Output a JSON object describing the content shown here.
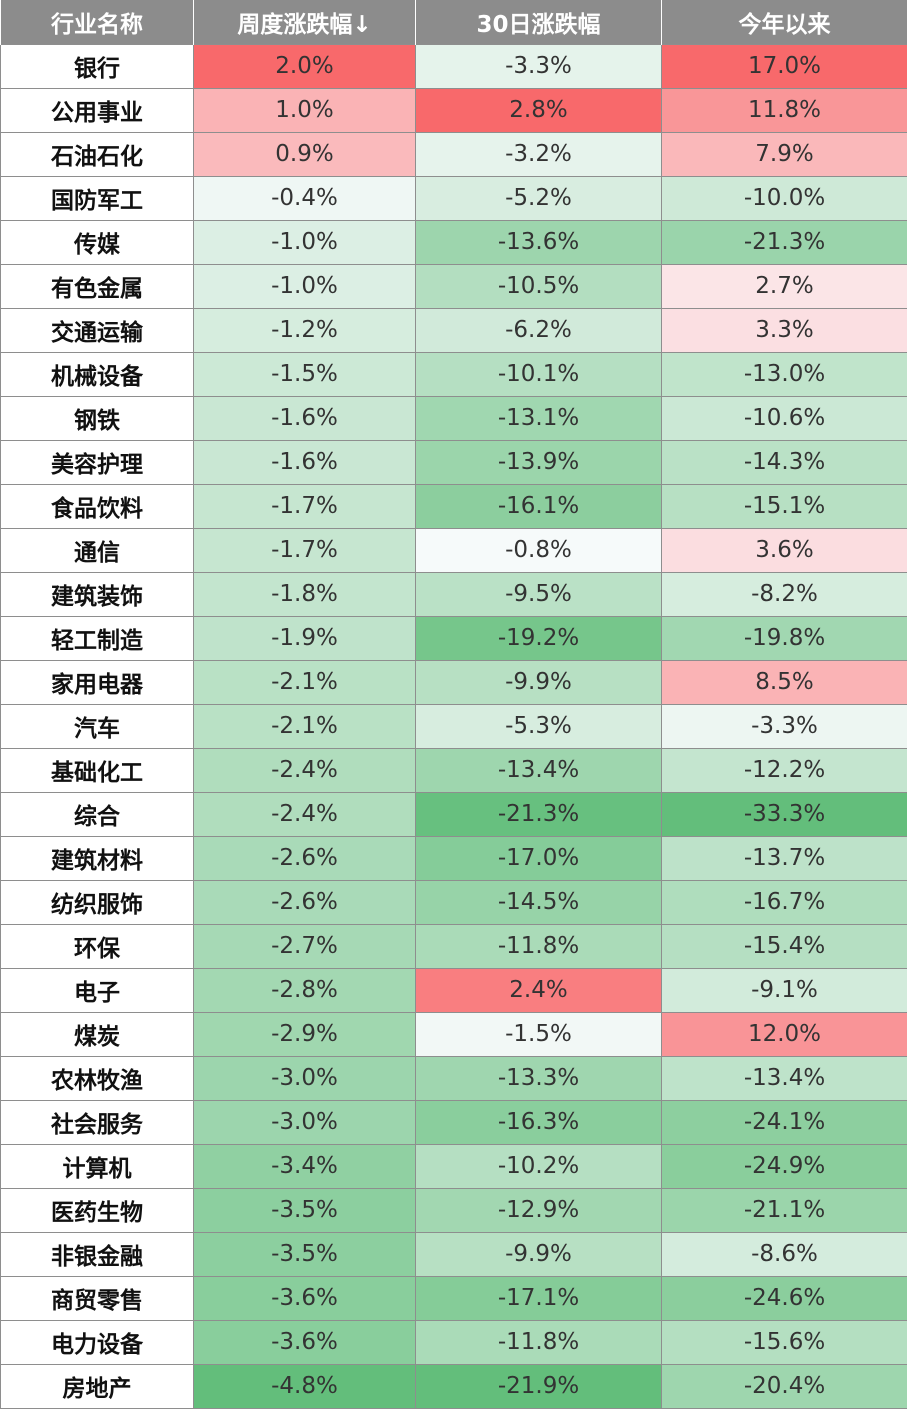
{
  "chart_data": {
    "type": "table",
    "columns": [
      "行业名称",
      "周度涨跌幅↓",
      "30日涨跌幅",
      "今年以来"
    ],
    "rows": [
      [
        "银行",
        "2.0%",
        "-3.3%",
        "17.0%"
      ],
      [
        "公用事业",
        "1.0%",
        "2.8%",
        "11.8%"
      ],
      [
        "石油石化",
        "0.9%",
        "-3.2%",
        "7.9%"
      ],
      [
        "国防军工",
        "-0.4%",
        "-5.2%",
        "-10.0%"
      ],
      [
        "传媒",
        "-1.0%",
        "-13.6%",
        "-21.3%"
      ],
      [
        "有色金属",
        "-1.0%",
        "-10.5%",
        "2.7%"
      ],
      [
        "交通运输",
        "-1.2%",
        "-6.2%",
        "3.3%"
      ],
      [
        "机械设备",
        "-1.5%",
        "-10.1%",
        "-13.0%"
      ],
      [
        "钢铁",
        "-1.6%",
        "-13.1%",
        "-10.6%"
      ],
      [
        "美容护理",
        "-1.6%",
        "-13.9%",
        "-14.3%"
      ],
      [
        "食品饮料",
        "-1.7%",
        "-16.1%",
        "-15.1%"
      ],
      [
        "通信",
        "-1.7%",
        "-0.8%",
        "3.6%"
      ],
      [
        "建筑装饰",
        "-1.8%",
        "-9.5%",
        "-8.2%"
      ],
      [
        "轻工制造",
        "-1.9%",
        "-19.2%",
        "-19.8%"
      ],
      [
        "家用电器",
        "-2.1%",
        "-9.9%",
        "8.5%"
      ],
      [
        "汽车",
        "-2.1%",
        "-5.3%",
        "-3.3%"
      ],
      [
        "基础化工",
        "-2.4%",
        "-13.4%",
        "-12.2%"
      ],
      [
        "综合",
        "-2.4%",
        "-21.3%",
        "-33.3%"
      ],
      [
        "建筑材料",
        "-2.6%",
        "-17.0%",
        "-13.7%"
      ],
      [
        "纺织服饰",
        "-2.6%",
        "-14.5%",
        "-16.7%"
      ],
      [
        "环保",
        "-2.7%",
        "-11.8%",
        "-15.4%"
      ],
      [
        "电子",
        "-2.8%",
        "2.4%",
        "-9.1%"
      ],
      [
        "煤炭",
        "-2.9%",
        "-1.5%",
        "12.0%"
      ],
      [
        "农林牧渔",
        "-3.0%",
        "-13.3%",
        "-13.4%"
      ],
      [
        "社会服务",
        "-3.0%",
        "-16.3%",
        "-24.1%"
      ],
      [
        "计算机",
        "-3.4%",
        "-10.2%",
        "-24.9%"
      ],
      [
        "医药生物",
        "-3.5%",
        "-12.9%",
        "-21.1%"
      ],
      [
        "非银金融",
        "-3.5%",
        "-9.9%",
        "-8.6%"
      ],
      [
        "商贸零售",
        "-3.6%",
        "-17.1%",
        "-24.6%"
      ],
      [
        "电力设备",
        "-3.6%",
        "-11.8%",
        "-15.6%"
      ],
      [
        "房地产",
        "-4.8%",
        "-21.9%",
        "-20.4%"
      ]
    ],
    "colors": {
      "header_bg": "#8c8c8c",
      "header_text": "#ffffff",
      "positive_max": "#f8696b",
      "negative_max": "#63be7b",
      "neutral": "#fcfcff"
    }
  }
}
